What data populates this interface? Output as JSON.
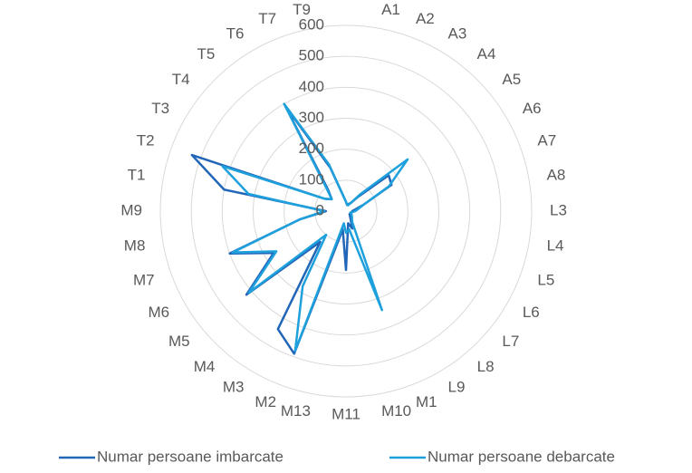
{
  "chart_data": {
    "type": "radar",
    "categories": [
      null,
      "A1",
      "A2",
      "A3",
      "A4",
      "A5",
      "A6",
      "A7",
      "A8",
      "L3",
      "L4",
      "L5",
      "L6",
      "L7",
      "L8",
      "L9",
      "M1",
      "M10",
      "M11",
      "M13",
      "M2",
      "M3",
      "M4",
      "M5",
      "M6",
      "M7",
      "M8",
      "M9",
      "T1",
      "T2",
      "T3",
      "T4",
      "T5",
      "T6",
      "T7",
      "T9"
    ],
    "series": [
      {
        "name": "Numar persoane imbarcate",
        "color": "#2266b8",
        "values": [
          30,
          20,
          25,
          30,
          60,
          180,
          170,
          60,
          30,
          20,
          20,
          15,
          20,
          15,
          20,
          30,
          60,
          40,
          190,
          60,
          490,
          440,
          130,
          420,
          270,
          400,
          150,
          65,
          400,
          530,
          80,
          60,
          90,
          390,
          150,
          50
        ]
      },
      {
        "name": "Numar persoane debarcate",
        "color": "#1ea0dc",
        "values": [
          30,
          20,
          20,
          30,
          70,
          260,
          160,
          60,
          40,
          30,
          20,
          15,
          20,
          25,
          30,
          40,
          340,
          60,
          70,
          40,
          480,
          280,
          100,
          410,
          260,
          390,
          150,
          70,
          320,
          425,
          80,
          60,
          100,
          400,
          160,
          50
        ]
      }
    ],
    "ylim": [
      0,
      600
    ],
    "yticks": [
      0,
      100,
      200,
      300,
      400,
      500,
      600
    ],
    "grid": true,
    "legend": "bottom"
  }
}
